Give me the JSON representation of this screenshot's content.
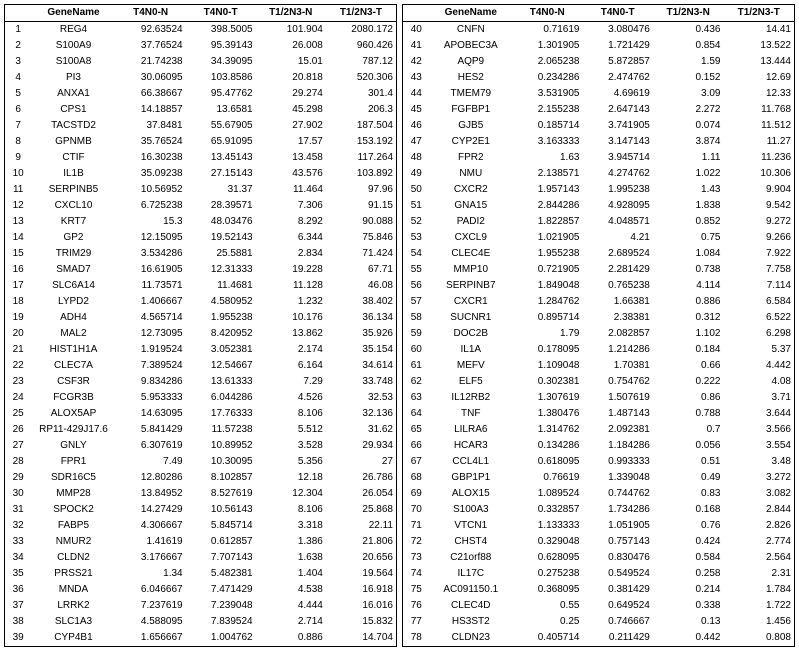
{
  "headers": [
    "",
    "GeneName",
    "T4N0-N",
    "T4N0-T",
    "T1/2N3-N",
    "T1/2N3-T"
  ],
  "left": [
    [
      "1",
      "REG4",
      "92.63524",
      "398.5005",
      "101.904",
      "2080.172"
    ],
    [
      "2",
      "S100A9",
      "37.76524",
      "95.39143",
      "26.008",
      "960.426"
    ],
    [
      "3",
      "S100A8",
      "21.74238",
      "34.39095",
      "15.01",
      "787.12"
    ],
    [
      "4",
      "PI3",
      "30.06095",
      "103.8586",
      "20.818",
      "520.306"
    ],
    [
      "5",
      "ANXA1",
      "66.38667",
      "95.47762",
      "29.274",
      "301.4"
    ],
    [
      "6",
      "CPS1",
      "14.18857",
      "13.6581",
      "45.298",
      "206.3"
    ],
    [
      "7",
      "TACSTD2",
      "37.8481",
      "55.67905",
      "27.902",
      "187.504"
    ],
    [
      "8",
      "GPNMB",
      "35.76524",
      "65.91095",
      "17.57",
      "153.192"
    ],
    [
      "9",
      "CTIF",
      "16.30238",
      "13.45143",
      "13.458",
      "117.264"
    ],
    [
      "10",
      "IL1B",
      "35.09238",
      "27.15143",
      "43.576",
      "103.892"
    ],
    [
      "11",
      "SERPINB5",
      "10.56952",
      "31.37",
      "11.464",
      "97.96"
    ],
    [
      "12",
      "CXCL10",
      "6.725238",
      "28.39571",
      "7.306",
      "91.15"
    ],
    [
      "13",
      "KRT7",
      "15.3",
      "48.03476",
      "8.292",
      "90.088"
    ],
    [
      "14",
      "GP2",
      "12.15095",
      "19.52143",
      "6.344",
      "75.846"
    ],
    [
      "15",
      "TRIM29",
      "3.534286",
      "25.5881",
      "2.834",
      "71.424"
    ],
    [
      "16",
      "SMAD7",
      "16.61905",
      "12.31333",
      "19.228",
      "67.71"
    ],
    [
      "17",
      "SLC6A14",
      "11.73571",
      "11.4681",
      "11.128",
      "46.08"
    ],
    [
      "18",
      "LYPD2",
      "1.406667",
      "4.580952",
      "1.232",
      "38.402"
    ],
    [
      "19",
      "ADH4",
      "4.565714",
      "1.955238",
      "10.176",
      "36.134"
    ],
    [
      "20",
      "MAL2",
      "12.73095",
      "8.420952",
      "13.862",
      "35.926"
    ],
    [
      "21",
      "HIST1H1A",
      "1.919524",
      "3.052381",
      "2.174",
      "35.154"
    ],
    [
      "22",
      "CLEC7A",
      "7.389524",
      "12.54667",
      "6.164",
      "34.614"
    ],
    [
      "23",
      "CSF3R",
      "9.834286",
      "13.61333",
      "7.29",
      "33.748"
    ],
    [
      "24",
      "FCGR3B",
      "5.953333",
      "6.044286",
      "4.526",
      "32.53"
    ],
    [
      "25",
      "ALOX5AP",
      "14.63095",
      "17.76333",
      "8.106",
      "32.136"
    ],
    [
      "26",
      "RP11-429J17.6",
      "5.841429",
      "11.57238",
      "5.512",
      "31.62"
    ],
    [
      "27",
      "GNLY",
      "6.307619",
      "10.89952",
      "3.528",
      "29.934"
    ],
    [
      "28",
      "FPR1",
      "7.49",
      "10.30095",
      "5.356",
      "27"
    ],
    [
      "29",
      "SDR16C5",
      "12.80286",
      "8.102857",
      "12.18",
      "26.786"
    ],
    [
      "30",
      "MMP28",
      "13.84952",
      "8.527619",
      "12.304",
      "26.054"
    ],
    [
      "31",
      "SPOCK2",
      "14.27429",
      "10.56143",
      "8.106",
      "25.868"
    ],
    [
      "32",
      "FABP5",
      "4.306667",
      "5.845714",
      "3.318",
      "22.11"
    ],
    [
      "33",
      "NMUR2",
      "1.41619",
      "0.612857",
      "1.386",
      "21.806"
    ],
    [
      "34",
      "CLDN2",
      "3.176667",
      "7.707143",
      "1.638",
      "20.656"
    ],
    [
      "35",
      "PRSS21",
      "1.34",
      "5.482381",
      "1.404",
      "19.564"
    ],
    [
      "36",
      "MNDA",
      "6.046667",
      "7.471429",
      "4.538",
      "16.918"
    ],
    [
      "37",
      "LRRK2",
      "7.237619",
      "7.239048",
      "4.444",
      "16.016"
    ],
    [
      "38",
      "SLC1A3",
      "4.588095",
      "7.839524",
      "2.714",
      "15.832"
    ],
    [
      "39",
      "CYP4B1",
      "1.656667",
      "1.004762",
      "0.886",
      "14.704"
    ]
  ],
  "right": [
    [
      "40",
      "CNFN",
      "0.71619",
      "3.080476",
      "0.436",
      "14.41"
    ],
    [
      "41",
      "APOBEC3A",
      "1.301905",
      "1.721429",
      "0.854",
      "13.522"
    ],
    [
      "42",
      "AQP9",
      "2.065238",
      "5.872857",
      "1.59",
      "13.444"
    ],
    [
      "43",
      "HES2",
      "0.234286",
      "2.474762",
      "0.152",
      "12.69"
    ],
    [
      "44",
      "TMEM79",
      "3.531905",
      "4.69619",
      "3.09",
      "12.33"
    ],
    [
      "45",
      "FGFBP1",
      "2.155238",
      "2.647143",
      "2.272",
      "11.768"
    ],
    [
      "46",
      "GJB5",
      "0.185714",
      "3.741905",
      "0.074",
      "11.512"
    ],
    [
      "47",
      "CYP2E1",
      "3.163333",
      "3.147143",
      "3.874",
      "11.27"
    ],
    [
      "48",
      "FPR2",
      "1.63",
      "3.945714",
      "1.11",
      "11.236"
    ],
    [
      "49",
      "NMU",
      "2.138571",
      "4.274762",
      "1.022",
      "10.306"
    ],
    [
      "50",
      "CXCR2",
      "1.957143",
      "1.995238",
      "1.43",
      "9.904"
    ],
    [
      "51",
      "GNA15",
      "2.844286",
      "4.928095",
      "1.838",
      "9.542"
    ],
    [
      "52",
      "PADI2",
      "1.822857",
      "4.048571",
      "0.852",
      "9.272"
    ],
    [
      "53",
      "CXCL9",
      "1.021905",
      "4.21",
      "0.75",
      "9.266"
    ],
    [
      "54",
      "CLEC4E",
      "1.955238",
      "2.689524",
      "1.084",
      "7.922"
    ],
    [
      "55",
      "MMP10",
      "0.721905",
      "2.281429",
      "0.738",
      "7.758"
    ],
    [
      "56",
      "SERPINB7",
      "1.849048",
      "0.765238",
      "4.114",
      "7.114"
    ],
    [
      "57",
      "CXCR1",
      "1.284762",
      "1.66381",
      "0.886",
      "6.584"
    ],
    [
      "58",
      "SUCNR1",
      "0.895714",
      "2.38381",
      "0.312",
      "6.522"
    ],
    [
      "59",
      "DOC2B",
      "1.79",
      "2.082857",
      "1.102",
      "6.298"
    ],
    [
      "60",
      "IL1A",
      "0.178095",
      "1.214286",
      "0.184",
      "5.37"
    ],
    [
      "61",
      "MEFV",
      "1.109048",
      "1.70381",
      "0.66",
      "4.442"
    ],
    [
      "62",
      "ELF5",
      "0.302381",
      "0.754762",
      "0.222",
      "4.08"
    ],
    [
      "63",
      "IL12RB2",
      "1.307619",
      "1.507619",
      "0.86",
      "3.71"
    ],
    [
      "64",
      "TNF",
      "1.380476",
      "1.487143",
      "0.788",
      "3.644"
    ],
    [
      "65",
      "LILRA6",
      "1.314762",
      "2.092381",
      "0.7",
      "3.566"
    ],
    [
      "66",
      "HCAR3",
      "0.134286",
      "1.184286",
      "0.056",
      "3.554"
    ],
    [
      "67",
      "CCL4L1",
      "0.618095",
      "0.993333",
      "0.51",
      "3.48"
    ],
    [
      "68",
      "GBP1P1",
      "0.76619",
      "1.339048",
      "0.49",
      "3.272"
    ],
    [
      "69",
      "ALOX15",
      "1.089524",
      "0.744762",
      "0.83",
      "3.082"
    ],
    [
      "70",
      "S100A3",
      "0.332857",
      "1.734286",
      "0.168",
      "2.844"
    ],
    [
      "71",
      "VTCN1",
      "1.133333",
      "1.051905",
      "0.76",
      "2.826"
    ],
    [
      "72",
      "CHST4",
      "0.329048",
      "0.757143",
      "0.424",
      "2.774"
    ],
    [
      "73",
      "C21orf88",
      "0.628095",
      "0.830476",
      "0.584",
      "2.564"
    ],
    [
      "74",
      "IL17C",
      "0.275238",
      "0.549524",
      "0.258",
      "2.31"
    ],
    [
      "75",
      "AC091150.1",
      "0.368095",
      "0.381429",
      "0.214",
      "1.784"
    ],
    [
      "76",
      "CLEC4D",
      "0.55",
      "0.649524",
      "0.338",
      "1.722"
    ],
    [
      "77",
      "HS3ST2",
      "0.25",
      "0.746667",
      "0.13",
      "1.456"
    ],
    [
      "78",
      "CLDN23",
      "0.405714",
      "0.211429",
      "0.442",
      "0.808"
    ]
  ]
}
